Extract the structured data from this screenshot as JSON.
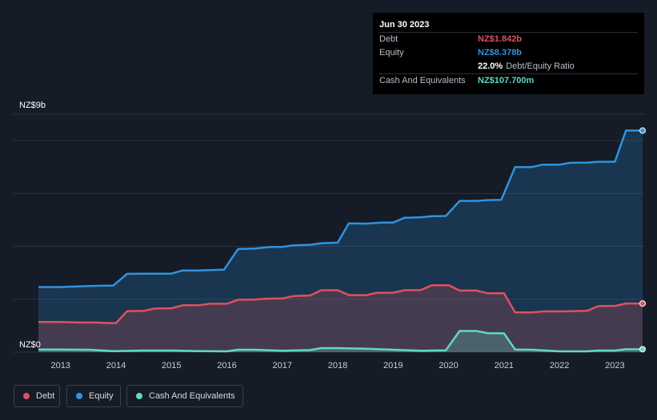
{
  "tooltip": {
    "date": "Jun 30 2023",
    "rows": {
      "debt": {
        "label": "Debt",
        "value": "NZ$1.842b"
      },
      "equity": {
        "label": "Equity",
        "value": "NZ$8.378b"
      },
      "ratio": {
        "value": "22.0%",
        "label": "Debt/Equity Ratio"
      },
      "cash": {
        "label": "Cash And Equivalents",
        "value": "NZ$107.700m"
      }
    }
  },
  "colors": {
    "debt": "#e0505c",
    "equity": "#2f93e0",
    "cash": "#5fd9c4",
    "background": "#151b27"
  },
  "legend": [
    {
      "key": "debt",
      "label": "Debt"
    },
    {
      "key": "equity",
      "label": "Equity"
    },
    {
      "key": "cash",
      "label": "Cash And Equivalents"
    }
  ],
  "chart_data": {
    "type": "area",
    "y_top_label": "NZ$9b",
    "y_bottom_label": "NZ$0",
    "ylim": [
      0,
      9
    ],
    "xlim": [
      2012.6,
      2023.5
    ],
    "xticks": [
      2013,
      2014,
      2015,
      2016,
      2017,
      2018,
      2019,
      2020,
      2021,
      2022,
      2023
    ],
    "grid": true,
    "series": [
      {
        "key": "equity",
        "name": "Equity",
        "points": [
          [
            2012.6,
            2.46
          ],
          [
            2013.0,
            2.46
          ],
          [
            2013.5,
            2.5
          ],
          [
            2013.95,
            2.52
          ],
          [
            2014.2,
            2.96
          ],
          [
            2014.5,
            2.97
          ],
          [
            2015.0,
            2.97
          ],
          [
            2015.2,
            3.09
          ],
          [
            2015.5,
            3.09
          ],
          [
            2015.95,
            3.12
          ],
          [
            2016.2,
            3.9
          ],
          [
            2016.5,
            3.92
          ],
          [
            2016.8,
            3.98
          ],
          [
            2017.0,
            3.98
          ],
          [
            2017.2,
            4.04
          ],
          [
            2017.5,
            4.06
          ],
          [
            2017.7,
            4.12
          ],
          [
            2018.0,
            4.14
          ],
          [
            2018.2,
            4.87
          ],
          [
            2018.5,
            4.86
          ],
          [
            2018.8,
            4.9
          ],
          [
            2019.0,
            4.9
          ],
          [
            2019.2,
            5.08
          ],
          [
            2019.5,
            5.1
          ],
          [
            2019.7,
            5.14
          ],
          [
            2019.95,
            5.15
          ],
          [
            2020.2,
            5.72
          ],
          [
            2020.5,
            5.72
          ],
          [
            2020.7,
            5.75
          ],
          [
            2020.95,
            5.76
          ],
          [
            2021.2,
            7.0
          ],
          [
            2021.5,
            7.0
          ],
          [
            2021.7,
            7.09
          ],
          [
            2022.0,
            7.09
          ],
          [
            2022.2,
            7.16
          ],
          [
            2022.5,
            7.17
          ],
          [
            2022.7,
            7.2
          ],
          [
            2023.0,
            7.2
          ],
          [
            2023.2,
            8.38
          ],
          [
            2023.5,
            8.38
          ]
        ]
      },
      {
        "key": "debt",
        "name": "Debt",
        "points": [
          [
            2012.6,
            1.14
          ],
          [
            2013.0,
            1.14
          ],
          [
            2013.3,
            1.12
          ],
          [
            2013.6,
            1.12
          ],
          [
            2013.9,
            1.1
          ],
          [
            2014.0,
            1.1
          ],
          [
            2014.2,
            1.55
          ],
          [
            2014.5,
            1.56
          ],
          [
            2014.7,
            1.65
          ],
          [
            2015.0,
            1.66
          ],
          [
            2015.2,
            1.77
          ],
          [
            2015.5,
            1.78
          ],
          [
            2015.7,
            1.83
          ],
          [
            2016.0,
            1.83
          ],
          [
            2016.2,
            1.98
          ],
          [
            2016.5,
            1.99
          ],
          [
            2016.7,
            2.02
          ],
          [
            2017.0,
            2.03
          ],
          [
            2017.2,
            2.12
          ],
          [
            2017.5,
            2.14
          ],
          [
            2017.7,
            2.34
          ],
          [
            2018.0,
            2.34
          ],
          [
            2018.2,
            2.16
          ],
          [
            2018.5,
            2.15
          ],
          [
            2018.7,
            2.24
          ],
          [
            2019.0,
            2.25
          ],
          [
            2019.2,
            2.34
          ],
          [
            2019.5,
            2.35
          ],
          [
            2019.7,
            2.53
          ],
          [
            2020.0,
            2.53
          ],
          [
            2020.2,
            2.33
          ],
          [
            2020.5,
            2.33
          ],
          [
            2020.7,
            2.23
          ],
          [
            2021.0,
            2.23
          ],
          [
            2021.2,
            1.5
          ],
          [
            2021.5,
            1.5
          ],
          [
            2021.7,
            1.54
          ],
          [
            2022.0,
            1.54
          ],
          [
            2022.2,
            1.55
          ],
          [
            2022.5,
            1.56
          ],
          [
            2022.7,
            1.74
          ],
          [
            2023.0,
            1.75
          ],
          [
            2023.2,
            1.84
          ],
          [
            2023.5,
            1.84
          ]
        ]
      },
      {
        "key": "cash",
        "name": "Cash And Equivalents",
        "points": [
          [
            2012.6,
            0.1
          ],
          [
            2013.0,
            0.1
          ],
          [
            2013.5,
            0.09
          ],
          [
            2013.95,
            0.04
          ],
          [
            2014.5,
            0.06
          ],
          [
            2015.0,
            0.06
          ],
          [
            2015.5,
            0.04
          ],
          [
            2016.0,
            0.03
          ],
          [
            2016.2,
            0.09
          ],
          [
            2016.5,
            0.09
          ],
          [
            2017.0,
            0.05
          ],
          [
            2017.5,
            0.08
          ],
          [
            2017.7,
            0.15
          ],
          [
            2018.0,
            0.15
          ],
          [
            2018.5,
            0.13
          ],
          [
            2019.0,
            0.09
          ],
          [
            2019.5,
            0.05
          ],
          [
            2019.95,
            0.07
          ],
          [
            2020.2,
            0.8
          ],
          [
            2020.5,
            0.8
          ],
          [
            2020.7,
            0.72
          ],
          [
            2021.0,
            0.71
          ],
          [
            2021.2,
            0.1
          ],
          [
            2021.5,
            0.09
          ],
          [
            2022.0,
            0.03
          ],
          [
            2022.5,
            0.03
          ],
          [
            2022.7,
            0.06
          ],
          [
            2023.0,
            0.06
          ],
          [
            2023.2,
            0.11
          ],
          [
            2023.5,
            0.11
          ]
        ]
      }
    ]
  }
}
